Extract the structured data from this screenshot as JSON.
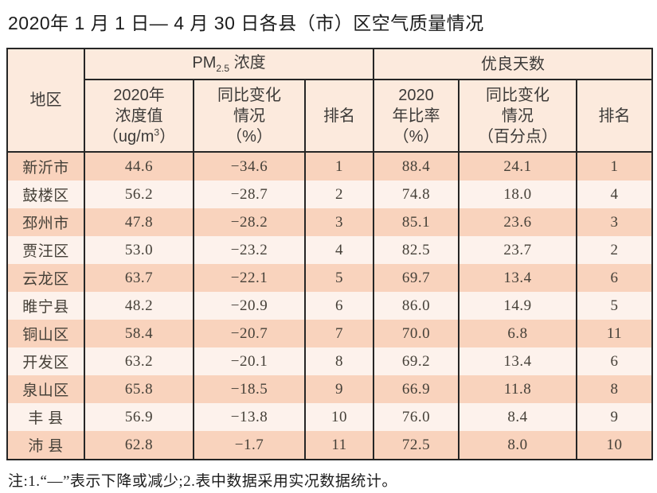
{
  "page": {
    "title": "2020年 1 月 1 日— 4 月 30 日各县（市）区空气质量情况",
    "note": "注:1.“—”表示下降或减少;2.表中数据采用实况数据统计。"
  },
  "colors": {
    "border": "#262626",
    "header_bg": "#fceadd",
    "row_odd_bg": "#f9d3bd",
    "row_even_bg": "#fdf2ec",
    "body_text": "#454038"
  },
  "table": {
    "corner_header": "地区",
    "group_pm": {
      "prefix": "PM",
      "sub": "2.5",
      "suffix": " 浓度"
    },
    "group_good": "优良天数",
    "sub_headers": {
      "pm_value": {
        "l1": "2020年",
        "l2": "浓度值",
        "l3a": "（ug/m",
        "sup": "3",
        "l3b": "）"
      },
      "pm_change": {
        "l1": "同比变化",
        "l2": "情况",
        "l3": "（%）"
      },
      "pm_rank": "排名",
      "good_ratio": {
        "l1": "2020",
        "l2": "年比率",
        "l3": "（%）"
      },
      "good_change": {
        "l1": "同比变化",
        "l2": "情况",
        "l3": "（百分点）"
      },
      "good_rank": "排名"
    },
    "rows": [
      {
        "region": "新沂市",
        "pm_value": "44.6",
        "pm_change": "−34.6",
        "pm_rank": "1",
        "good_ratio": "88.4",
        "good_change": "24.1",
        "good_rank": "1"
      },
      {
        "region": "鼓楼区",
        "pm_value": "56.2",
        "pm_change": "−28.7",
        "pm_rank": "2",
        "good_ratio": "74.8",
        "good_change": "18.0",
        "good_rank": "4"
      },
      {
        "region": "邳州市",
        "pm_value": "47.8",
        "pm_change": "−28.2",
        "pm_rank": "3",
        "good_ratio": "85.1",
        "good_change": "23.6",
        "good_rank": "3"
      },
      {
        "region": "贾汪区",
        "pm_value": "53.0",
        "pm_change": "−23.2",
        "pm_rank": "4",
        "good_ratio": "82.5",
        "good_change": "23.7",
        "good_rank": "2"
      },
      {
        "region": "云龙区",
        "pm_value": "63.7",
        "pm_change": "−22.1",
        "pm_rank": "5",
        "good_ratio": "69.7",
        "good_change": "13.4",
        "good_rank": "6"
      },
      {
        "region": "睢宁县",
        "pm_value": "48.2",
        "pm_change": "−20.9",
        "pm_rank": "6",
        "good_ratio": "86.0",
        "good_change": "14.9",
        "good_rank": "5"
      },
      {
        "region": "铜山区",
        "pm_value": "58.4",
        "pm_change": "−20.7",
        "pm_rank": "7",
        "good_ratio": "70.0",
        "good_change": "6.8",
        "good_rank": "11"
      },
      {
        "region": "开发区",
        "pm_value": "63.2",
        "pm_change": "−20.1",
        "pm_rank": "8",
        "good_ratio": "69.2",
        "good_change": "13.4",
        "good_rank": "6"
      },
      {
        "region": "泉山区",
        "pm_value": "65.8",
        "pm_change": "−18.5",
        "pm_rank": "9",
        "good_ratio": "66.9",
        "good_change": "11.8",
        "good_rank": "8"
      },
      {
        "region": "丰 县",
        "pm_value": "56.9",
        "pm_change": "−13.8",
        "pm_rank": "10",
        "good_ratio": "76.0",
        "good_change": "8.4",
        "good_rank": "9"
      },
      {
        "region": "沛 县",
        "pm_value": "62.8",
        "pm_change": "−1.7",
        "pm_rank": "11",
        "good_ratio": "72.5",
        "good_change": "8.0",
        "good_rank": "10"
      }
    ]
  }
}
